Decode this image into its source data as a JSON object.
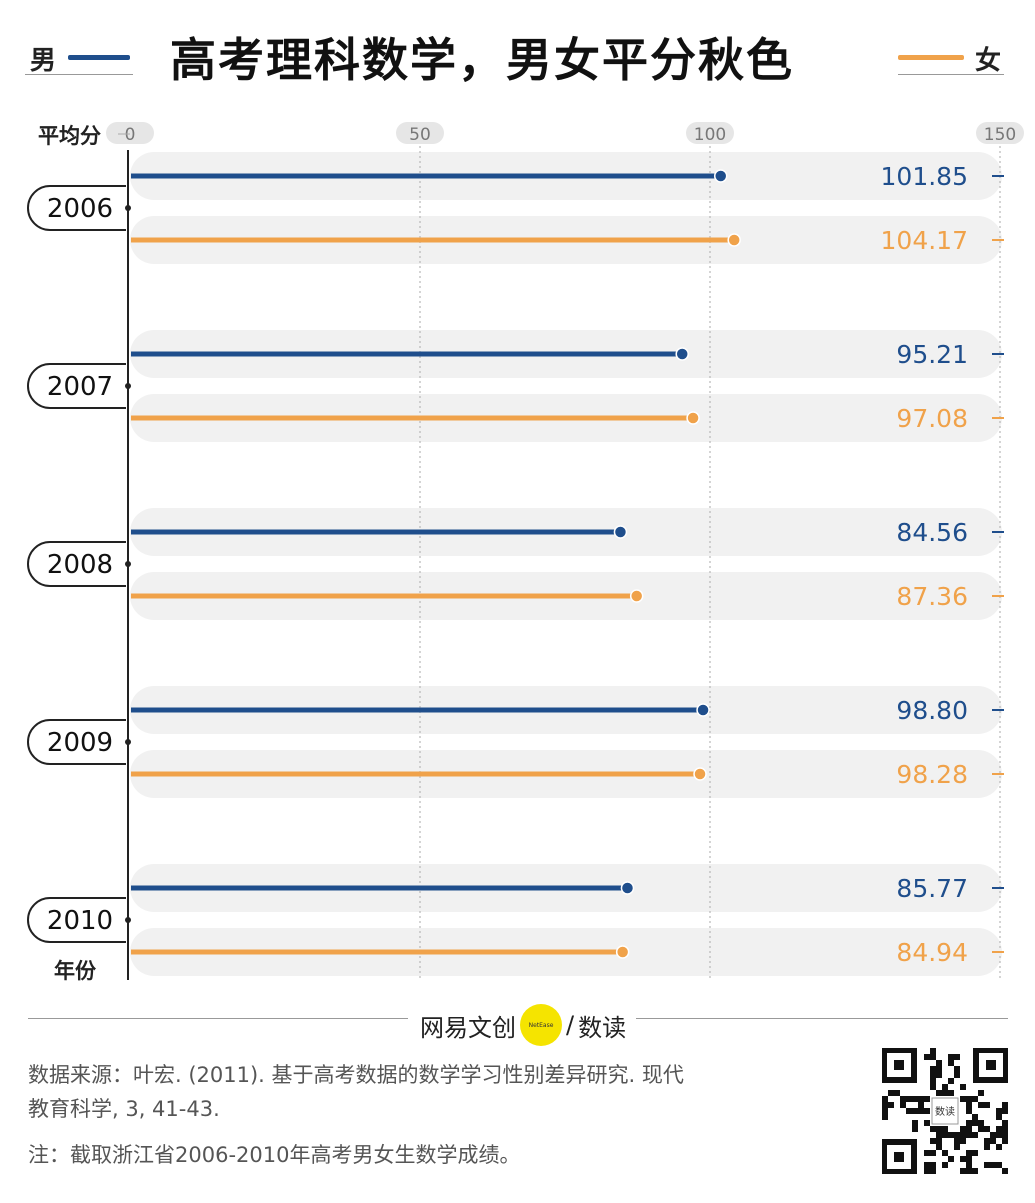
{
  "title": {
    "text": "高考理科数学，男女平分秋色",
    "legend_male": "男",
    "legend_female": "女"
  },
  "colors": {
    "male": "#1f4e8c",
    "female": "#f0a24a",
    "band": "#f1f1f1"
  },
  "chart_data": {
    "type": "bar",
    "orientation": "horizontal",
    "xlabel": "平均分",
    "ylabel": "年份",
    "xlim": [
      0,
      150
    ],
    "xticks": [
      "0",
      "50",
      "100",
      "150"
    ],
    "categories": [
      "2006",
      "2007",
      "2008",
      "2009",
      "2010"
    ],
    "series": [
      {
        "name": "男",
        "values": [
          101.85,
          95.21,
          84.56,
          98.8,
          85.77
        ],
        "labels": [
          "101.85",
          "95.21",
          "84.56",
          "98.80",
          "85.77"
        ]
      },
      {
        "name": "女",
        "values": [
          104.17,
          97.08,
          87.36,
          98.28,
          84.94
        ],
        "labels": [
          "104.17",
          "97.08",
          "87.36",
          "98.28",
          "84.94"
        ]
      }
    ],
    "grid": true
  },
  "footer": {
    "brand_left": "网易文创",
    "brand_badge": "NetEase",
    "brand_sep": "/",
    "brand_right": "数读",
    "source_line1": "数据来源：叶宏. (2011). 基于高考数据的数学学习性别差异研究. 现代",
    "source_line2": "教育科学, 3, 41-43.",
    "note": "注：截取浙江省2006-2010年高考男女生数学成绩。",
    "qr_label": "数读"
  }
}
